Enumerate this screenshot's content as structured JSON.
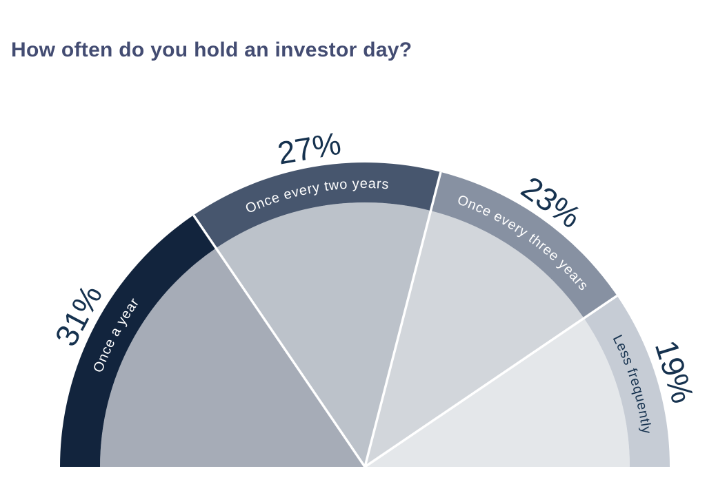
{
  "title": "How often do you hold an investor day?",
  "page": {
    "background_color": "#ffffff",
    "title_color": "#434c72"
  },
  "chart_data": {
    "type": "pie",
    "variant": "half-donut-with-outer-band",
    "title": "How often do you hold an investor day?",
    "unit": "%",
    "total_angle_degrees": 180,
    "grid": false,
    "legend_position": "labels-on-segments",
    "divider_color": "#ffffff",
    "percent_text_color": "#16324f",
    "categories": [
      "Once a year",
      "Once every two years",
      "Once every three years",
      "Less frequently"
    ],
    "values": [
      31,
      27,
      23,
      19
    ],
    "segments": [
      {
        "label": "Once a year",
        "value": 31,
        "percent_label": "31%",
        "band_color": "#12243d",
        "wedge_color": "#a6acb7",
        "label_color": "#ffffff"
      },
      {
        "label": "Once every two years",
        "value": 27,
        "percent_label": "27%",
        "band_color": "#47566e",
        "wedge_color": "#bcc2ca",
        "label_color": "#ffffff"
      },
      {
        "label": "Once every three years",
        "value": 23,
        "percent_label": "23%",
        "band_color": "#8791a2",
        "wedge_color": "#d2d6db",
        "label_color": "#ffffff"
      },
      {
        "label": "Less frequently",
        "value": 19,
        "percent_label": "19%",
        "band_color": "#c6ccd5",
        "wedge_color": "#e4e7ea",
        "label_color": "#16324f"
      }
    ]
  }
}
